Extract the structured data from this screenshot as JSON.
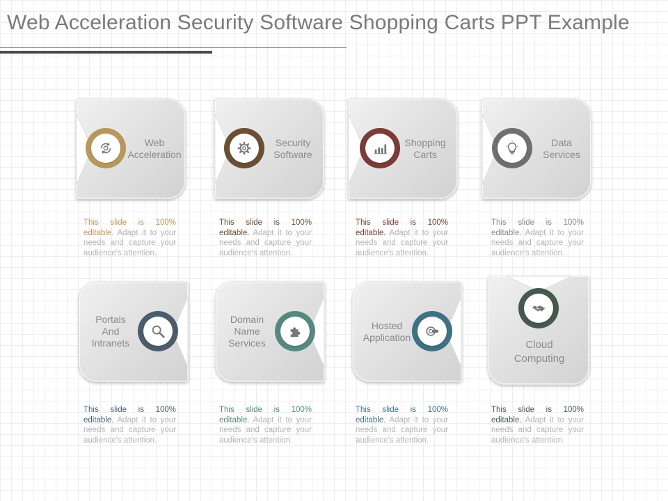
{
  "title": "Web Acceleration Security Software Shopping Carts PPT Example",
  "cards": [
    {
      "label": "Web Acceleration",
      "icon": "refresh-gear-icon",
      "color": "#b7975c"
    },
    {
      "label": "Security Software",
      "icon": "gear-icon",
      "color": "#6b4e33"
    },
    {
      "label": "Shopping Carts",
      "icon": "bar-chart-icon",
      "color": "#7b3b36"
    },
    {
      "label": "Data Services",
      "icon": "lightbulb-icon",
      "color": "#6f6f6f"
    },
    {
      "label": "Portals And Intranets",
      "icon": "magnifier-icon",
      "color": "#4b5d6d"
    },
    {
      "label": "Domain Name Services",
      "icon": "puzzle-icon",
      "color": "#568880"
    },
    {
      "label": "Hosted Application",
      "icon": "cloud-url-icon",
      "color": "#3e7183"
    },
    {
      "label": "Cloud Computing",
      "icon": "handshake-icon",
      "color": "#44594f"
    }
  ],
  "descriptions": {
    "lead": "This slide is 100% editable.",
    "rest": "Adapt it to your needs and capture your audience's attention."
  },
  "lead_colors": [
    "#c9955a",
    "#6b4e33",
    "#7b3b36",
    "#7a7a7a",
    "#4b5d6d",
    "#568880",
    "#3e7183",
    "#44594f"
  ]
}
